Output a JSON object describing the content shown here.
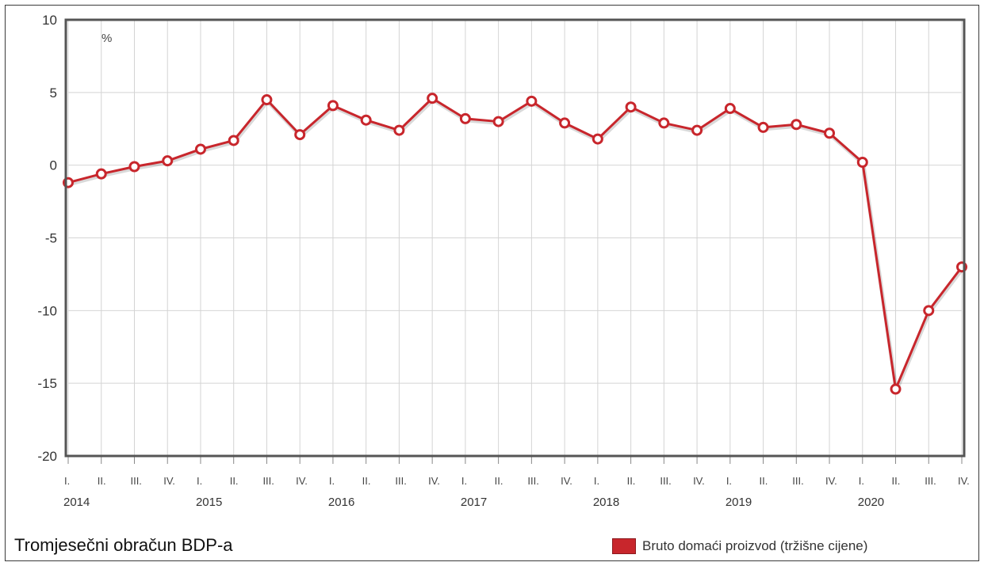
{
  "chart_data": {
    "type": "line",
    "title": "Tromjesečni obračun BDP-a",
    "ylabel": "%",
    "ylim": [
      -20,
      10
    ],
    "yticks": [
      "10",
      "5",
      "0",
      "-5",
      "-10",
      "-15",
      "-20"
    ],
    "ytick_values": [
      10,
      5,
      0,
      -5,
      -10,
      -15,
      -20
    ],
    "quarters": [
      "I.",
      "II.",
      "III.",
      "IV.",
      "I.",
      "II.",
      "III.",
      "IV.",
      "I.",
      "II.",
      "III.",
      "IV.",
      "I.",
      "II.",
      "III.",
      "IV.",
      "I.",
      "II.",
      "III.",
      "IV.",
      "I.",
      "II.",
      "III.",
      "IV.",
      "I.",
      "II.",
      "III.",
      "IV."
    ],
    "years": [
      "2014",
      "2015",
      "2016",
      "2017",
      "2018",
      "2019",
      "2020"
    ],
    "grid": true,
    "legend_position": "bottom-right",
    "series": [
      {
        "name": "Bruto domaći proizvod (tržišne cijene)",
        "color": "#c8262c",
        "values": [
          -1.2,
          -0.6,
          -0.1,
          0.3,
          1.1,
          1.7,
          4.5,
          2.1,
          4.1,
          3.1,
          2.4,
          4.6,
          3.2,
          3.0,
          4.4,
          2.9,
          1.8,
          4.0,
          2.9,
          2.4,
          3.9,
          2.6,
          2.8,
          2.2,
          0.2,
          -15.4,
          -10.0,
          -7.0
        ]
      }
    ]
  }
}
